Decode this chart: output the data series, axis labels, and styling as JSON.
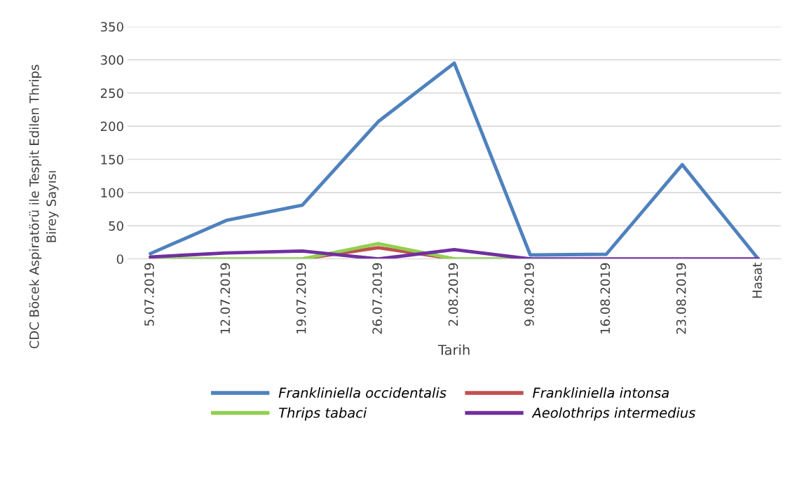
{
  "chart_data": {
    "type": "line",
    "xlabel": "Tarih",
    "ylabel": "CDC Böcek Aspiratörü ile Tespit Edilen Thrips\nBirey Sayısı",
    "categories": [
      "5.07.2019",
      "12.07.2019",
      "19.07.2019",
      "26.07.2019",
      "2.08.2019",
      "9.08.2019",
      "16.08.2019",
      "23.08.2019",
      "Hasat"
    ],
    "series": [
      {
        "name": "Frankliniella occidentalis",
        "color": "#4f81bd",
        "values": [
          8,
          58,
          81,
          207,
          295,
          6,
          7,
          142,
          0
        ]
      },
      {
        "name": "Frankliniella intonsa",
        "color": "#c0504d",
        "values": [
          null,
          null,
          0,
          17,
          0,
          null,
          null,
          null,
          null
        ]
      },
      {
        "name": "Thrips tabaci",
        "color": "#92d050",
        "values": [
          0,
          0,
          0,
          23,
          0,
          0,
          null,
          null,
          null
        ]
      },
      {
        "name": "Aeolothrips intermedius",
        "color": "#7030a0",
        "values": [
          3,
          9,
          12,
          0,
          14,
          0,
          0,
          0,
          0
        ]
      }
    ],
    "ylim": [
      0,
      350
    ],
    "yticks": [
      0,
      50,
      100,
      150,
      200,
      250,
      300,
      350
    ],
    "grid": "y",
    "legend": "bottom",
    "marker": "none",
    "line_style": "solid"
  }
}
